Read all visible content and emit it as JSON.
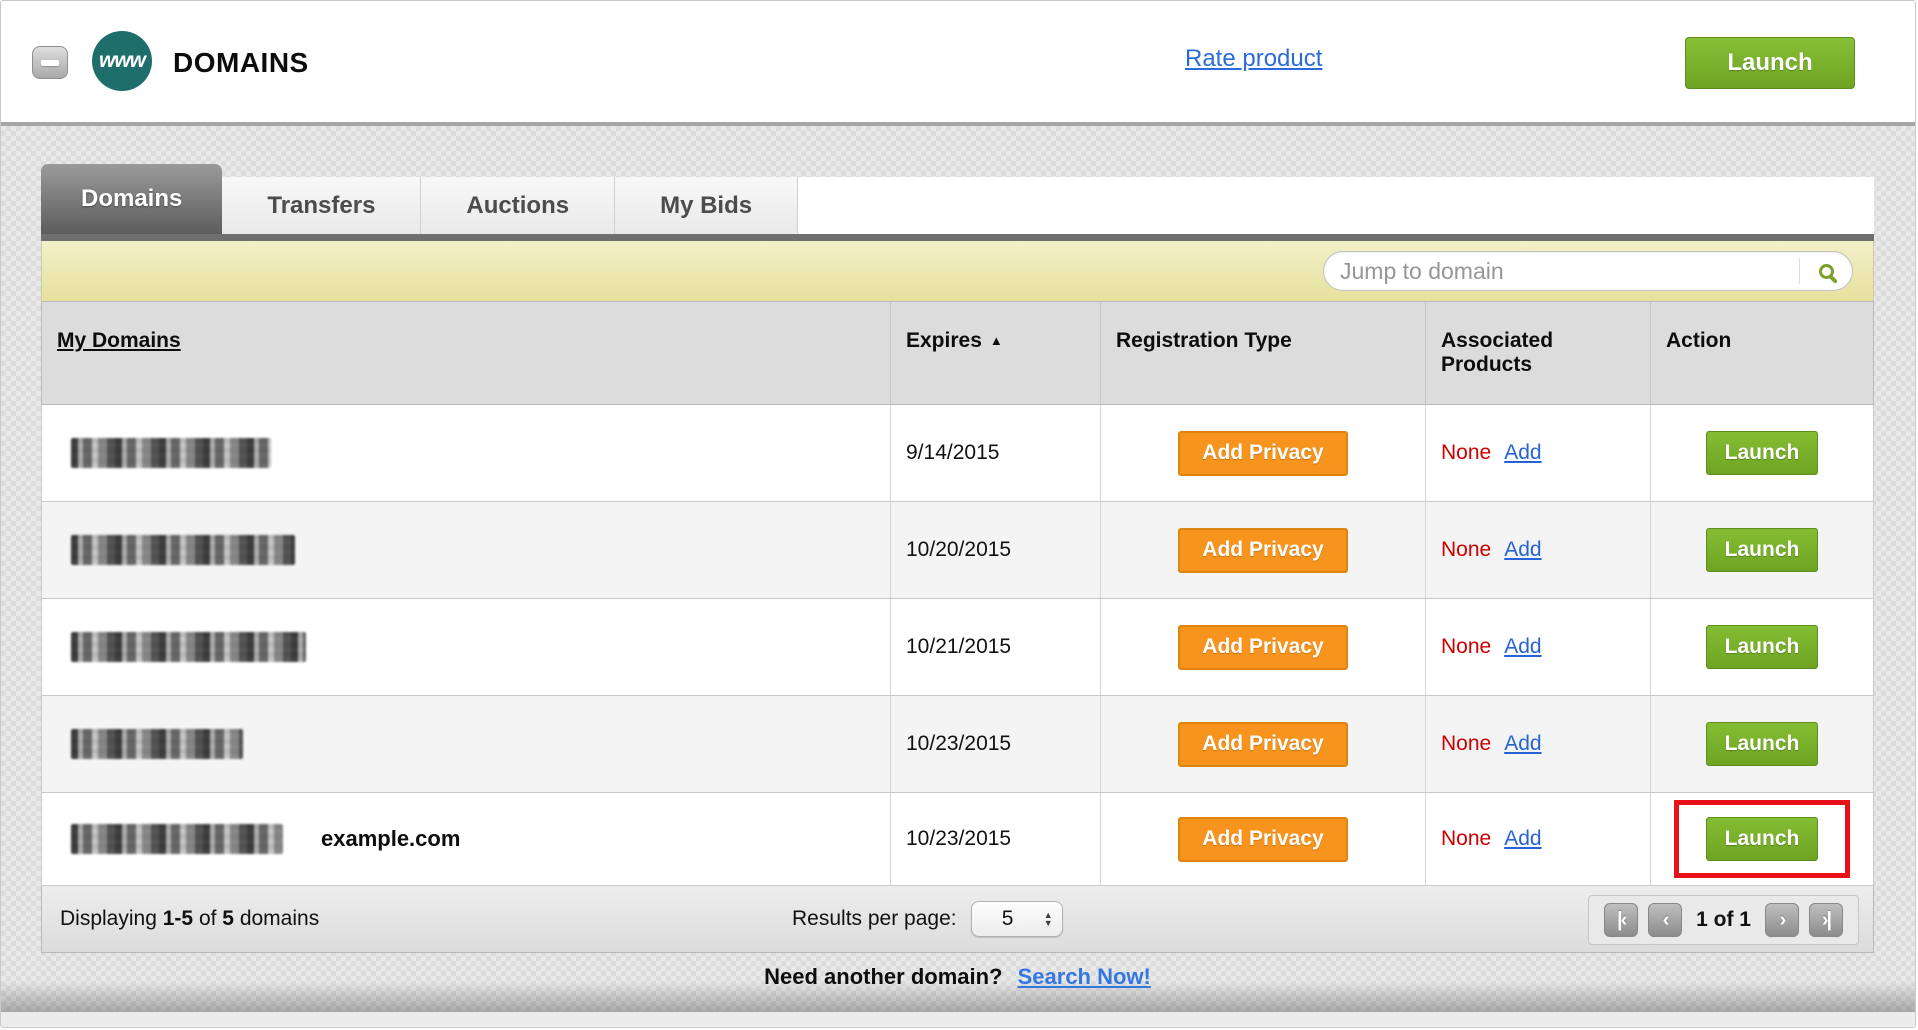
{
  "header": {
    "www_badge": "www",
    "title": "DOMAINS",
    "rate_product_link": "Rate product",
    "launch_button": "Launch"
  },
  "tabs": {
    "items": [
      {
        "label": "Domains",
        "active": true
      },
      {
        "label": "Transfers",
        "active": false
      },
      {
        "label": "Auctions",
        "active": false
      },
      {
        "label": "My Bids",
        "active": false
      }
    ]
  },
  "toolbar": {
    "search_placeholder": "Jump to domain",
    "search_icon": "magnifier-icon"
  },
  "table": {
    "headers": {
      "my_domains": "My Domains",
      "expires": "Expires",
      "sort_arrow": "▲",
      "registration_type": "Registration Type",
      "associated_products": "Associated Products",
      "action": "Action"
    },
    "rows": [
      {
        "domain": "[redacted]",
        "expires": "9/14/2015",
        "privacy_button": "Add Privacy",
        "associated_value": "None",
        "add_link": "Add",
        "launch_button": "Launch",
        "highlighted": false
      },
      {
        "domain": "[redacted]",
        "expires": "10/20/2015",
        "privacy_button": "Add Privacy",
        "associated_value": "None",
        "add_link": "Add",
        "launch_button": "Launch",
        "highlighted": false
      },
      {
        "domain": "[redacted]",
        "expires": "10/21/2015",
        "privacy_button": "Add Privacy",
        "associated_value": "None",
        "add_link": "Add",
        "launch_button": "Launch",
        "highlighted": false
      },
      {
        "domain": "[redacted]",
        "expires": "10/23/2015",
        "privacy_button": "Add Privacy",
        "associated_value": "None",
        "add_link": "Add",
        "launch_button": "Launch",
        "highlighted": false
      },
      {
        "domain": "[redacted]",
        "domain_label": "example.com",
        "expires": "10/23/2015",
        "privacy_button": "Add Privacy",
        "associated_value": "None",
        "add_link": "Add",
        "launch_button": "Launch",
        "highlighted": true
      }
    ]
  },
  "footer": {
    "displaying_word": "Displaying",
    "range": "1-5",
    "of_word": "of",
    "total": "5",
    "domains_word": "domains",
    "results_per_page_label": "Results per page:",
    "page_size_value": "5",
    "select_up_icon": "▲",
    "select_down_icon": "▼",
    "first_icon": "|‹",
    "prev_icon": "‹",
    "next_icon": "›",
    "last_icon": "›|",
    "page_status": "1 of 1"
  },
  "bottom": {
    "question": "Need another domain?",
    "link": "Search Now!"
  },
  "colors": {
    "accent_green": "#76b82a",
    "accent_orange": "#f7941e",
    "link_blue": "#2563d6",
    "alert_red": "#cc0000",
    "highlight_red": "#e8111b",
    "badge_teal": "#1e6f6c",
    "toolbar_yellow": "#e9e4a2"
  }
}
